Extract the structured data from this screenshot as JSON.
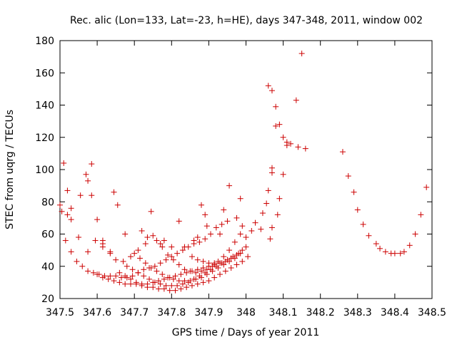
{
  "chart_data": {
    "type": "scatter",
    "title": "Rec. alic (Lon=133, Lat=-23, h=HE), days 347-348, 2011, window 002",
    "xlabel": "GPS time / Days of year 2011",
    "ylabel": "STEC from uqrg / TECUs",
    "xlim": [
      347.5,
      348.5
    ],
    "ylim": [
      20,
      180
    ],
    "grid": false,
    "legend": "none",
    "marker": "+",
    "marker_color": "#cc0000",
    "x_ticks": [
      347.5,
      347.6,
      347.7,
      347.8,
      347.9,
      348.0,
      348.1,
      348.2,
      348.3,
      348.4,
      348.5
    ],
    "x_tick_labels": [
      "347.5",
      "347.6",
      "347.7",
      "347.8",
      "347.9",
      "348",
      "348.1",
      "348.2",
      "348.3",
      "348.4",
      "348.5"
    ],
    "y_ticks": [
      20,
      40,
      60,
      80,
      100,
      120,
      140,
      160,
      180
    ],
    "y_tick_labels": [
      "20",
      "40",
      "60",
      "80",
      "100",
      "120",
      "140",
      "160",
      "180"
    ],
    "points": [
      [
        347.5,
        78
      ],
      [
        347.51,
        104
      ],
      [
        347.52,
        87
      ],
      [
        347.53,
        76
      ],
      [
        347.555,
        84
      ],
      [
        347.57,
        97
      ],
      [
        347.575,
        93
      ],
      [
        347.585,
        103.5
      ],
      [
        347.585,
        84
      ],
      [
        347.6,
        69
      ],
      [
        347.615,
        56
      ],
      [
        347.615,
        54
      ],
      [
        347.635,
        49
      ],
      [
        347.645,
        86
      ],
      [
        347.655,
        78
      ],
      [
        347.675,
        60
      ],
      [
        347.505,
        74
      ],
      [
        347.52,
        72
      ],
      [
        347.53,
        69
      ],
      [
        347.55,
        58
      ],
      [
        347.575,
        49
      ],
      [
        347.595,
        56
      ],
      [
        347.615,
        52
      ],
      [
        347.635,
        48
      ],
      [
        347.65,
        44
      ],
      [
        347.67,
        43
      ],
      [
        347.69,
        46
      ],
      [
        347.71,
        50
      ],
      [
        347.73,
        54
      ],
      [
        347.75,
        59
      ],
      [
        347.77,
        54
      ],
      [
        347.78,
        56
      ],
      [
        347.8,
        52
      ],
      [
        347.82,
        68
      ],
      [
        347.835,
        52
      ],
      [
        347.86,
        56
      ],
      [
        347.87,
        58
      ],
      [
        347.88,
        78
      ],
      [
        347.89,
        72
      ],
      [
        347.895,
        65
      ],
      [
        347.515,
        56
      ],
      [
        347.53,
        49
      ],
      [
        347.545,
        43
      ],
      [
        347.56,
        40
      ],
      [
        347.575,
        37
      ],
      [
        347.59,
        36
      ],
      [
        347.605,
        35
      ],
      [
        347.62,
        34
      ],
      [
        347.635,
        34
      ],
      [
        347.65,
        34
      ],
      [
        347.665,
        33
      ],
      [
        347.68,
        33
      ],
      [
        347.695,
        34
      ],
      [
        347.71,
        36
      ],
      [
        347.725,
        38
      ],
      [
        347.74,
        39
      ],
      [
        347.755,
        40
      ],
      [
        347.77,
        42
      ],
      [
        347.785,
        44
      ],
      [
        347.8,
        46
      ],
      [
        347.815,
        48
      ],
      [
        347.83,
        50
      ],
      [
        347.845,
        52
      ],
      [
        347.86,
        54
      ],
      [
        347.875,
        55
      ],
      [
        347.89,
        57
      ],
      [
        347.905,
        60
      ],
      [
        347.92,
        64
      ],
      [
        347.935,
        66
      ],
      [
        347.95,
        68
      ],
      [
        347.6,
        35
      ],
      [
        347.615,
        33
      ],
      [
        347.63,
        32
      ],
      [
        347.645,
        31
      ],
      [
        347.66,
        30
      ],
      [
        347.675,
        29
      ],
      [
        347.69,
        29
      ],
      [
        347.705,
        29
      ],
      [
        347.72,
        29
      ],
      [
        347.735,
        29
      ],
      [
        347.75,
        30
      ],
      [
        347.765,
        31
      ],
      [
        347.78,
        32
      ],
      [
        347.795,
        33
      ],
      [
        347.81,
        34
      ],
      [
        347.825,
        35
      ],
      [
        347.84,
        36
      ],
      [
        347.855,
        37
      ],
      [
        347.87,
        38
      ],
      [
        347.885,
        39
      ],
      [
        347.9,
        40
      ],
      [
        347.915,
        41
      ],
      [
        347.93,
        42
      ],
      [
        347.945,
        43
      ],
      [
        347.96,
        45
      ],
      [
        347.975,
        47
      ],
      [
        347.99,
        50
      ],
      [
        347.66,
        36
      ],
      [
        347.675,
        34
      ],
      [
        347.69,
        32
      ],
      [
        347.705,
        30
      ],
      [
        347.72,
        28
      ],
      [
        347.735,
        27
      ],
      [
        347.75,
        27
      ],
      [
        347.765,
        26
      ],
      [
        347.78,
        26
      ],
      [
        347.795,
        25
      ],
      [
        347.81,
        25
      ],
      [
        347.825,
        26
      ],
      [
        347.84,
        27
      ],
      [
        347.855,
        28
      ],
      [
        347.87,
        29
      ],
      [
        347.885,
        30
      ],
      [
        347.9,
        31
      ],
      [
        347.915,
        33
      ],
      [
        347.93,
        35
      ],
      [
        347.945,
        37
      ],
      [
        347.96,
        39
      ],
      [
        347.975,
        41
      ],
      [
        347.99,
        43
      ],
      [
        348.005,
        46
      ],
      [
        347.68,
        40
      ],
      [
        347.695,
        38
      ],
      [
        347.71,
        36
      ],
      [
        347.725,
        34
      ],
      [
        347.74,
        32
      ],
      [
        347.755,
        30
      ],
      [
        347.77,
        29
      ],
      [
        347.785,
        28
      ],
      [
        347.8,
        28
      ],
      [
        347.815,
        28
      ],
      [
        347.83,
        29
      ],
      [
        347.845,
        30
      ],
      [
        347.86,
        32
      ],
      [
        347.875,
        34
      ],
      [
        347.89,
        36
      ],
      [
        347.905,
        38
      ],
      [
        347.92,
        40
      ],
      [
        347.935,
        42
      ],
      [
        347.95,
        44
      ],
      [
        347.965,
        46
      ],
      [
        347.98,
        48
      ],
      [
        347.7,
        48
      ],
      [
        347.715,
        45
      ],
      [
        347.73,
        42
      ],
      [
        347.745,
        39
      ],
      [
        347.76,
        37
      ],
      [
        347.775,
        35
      ],
      [
        347.79,
        33
      ],
      [
        347.805,
        32
      ],
      [
        347.82,
        31
      ],
      [
        347.835,
        31
      ],
      [
        347.85,
        31
      ],
      [
        347.865,
        32
      ],
      [
        347.88,
        33
      ],
      [
        347.895,
        35
      ],
      [
        347.91,
        37
      ],
      [
        347.925,
        39
      ],
      [
        347.94,
        41
      ],
      [
        347.955,
        43
      ],
      [
        347.97,
        45
      ],
      [
        347.985,
        48
      ],
      [
        348.0,
        52
      ],
      [
        347.72,
        62
      ],
      [
        347.735,
        58
      ],
      [
        347.745,
        74
      ],
      [
        347.76,
        56
      ],
      [
        347.775,
        52
      ],
      [
        347.79,
        47
      ],
      [
        347.805,
        44
      ],
      [
        347.82,
        41
      ],
      [
        347.835,
        38
      ],
      [
        347.85,
        37
      ],
      [
        347.865,
        36
      ],
      [
        347.88,
        37
      ],
      [
        347.895,
        38
      ],
      [
        347.91,
        40
      ],
      [
        347.925,
        43
      ],
      [
        347.94,
        46
      ],
      [
        347.955,
        50
      ],
      [
        347.97,
        55
      ],
      [
        347.985,
        60
      ],
      [
        347.99,
        65
      ],
      [
        347.855,
        46
      ],
      [
        347.87,
        44
      ],
      [
        347.885,
        43
      ],
      [
        347.9,
        42
      ],
      [
        347.915,
        42
      ],
      [
        347.93,
        60
      ],
      [
        347.94,
        75
      ],
      [
        347.955,
        90
      ],
      [
        347.975,
        70
      ],
      [
        347.985,
        82
      ],
      [
        348.0,
        58
      ],
      [
        348.015,
        62
      ],
      [
        348.025,
        67
      ],
      [
        348.04,
        63
      ],
      [
        348.045,
        73
      ],
      [
        348.055,
        79
      ],
      [
        348.06,
        87
      ],
      [
        348.065,
        57
      ],
      [
        348.06,
        152
      ],
      [
        348.07,
        149
      ],
      [
        348.08,
        139
      ],
      [
        348.08,
        127
      ],
      [
        348.09,
        128
      ],
      [
        348.07,
        101
      ],
      [
        348.07,
        98
      ],
      [
        348.1,
        120
      ],
      [
        348.11,
        117
      ],
      [
        348.11,
        115
      ],
      [
        348.12,
        116
      ],
      [
        348.135,
        143
      ],
      [
        348.14,
        114
      ],
      [
        348.15,
        172
      ],
      [
        348.16,
        113
      ],
      [
        348.085,
        72
      ],
      [
        348.09,
        82
      ],
      [
        348.1,
        97
      ],
      [
        348.07,
        64
      ],
      [
        348.26,
        111
      ],
      [
        348.275,
        96
      ],
      [
        348.29,
        86
      ],
      [
        348.3,
        75
      ],
      [
        348.315,
        66
      ],
      [
        348.33,
        59
      ],
      [
        348.35,
        54
      ],
      [
        348.36,
        51
      ],
      [
        348.375,
        49
      ],
      [
        348.39,
        48
      ],
      [
        348.4,
        48
      ],
      [
        348.415,
        48
      ],
      [
        348.425,
        49
      ],
      [
        348.44,
        53
      ],
      [
        348.455,
        60
      ],
      [
        348.47,
        72
      ],
      [
        348.485,
        89
      ]
    ]
  }
}
